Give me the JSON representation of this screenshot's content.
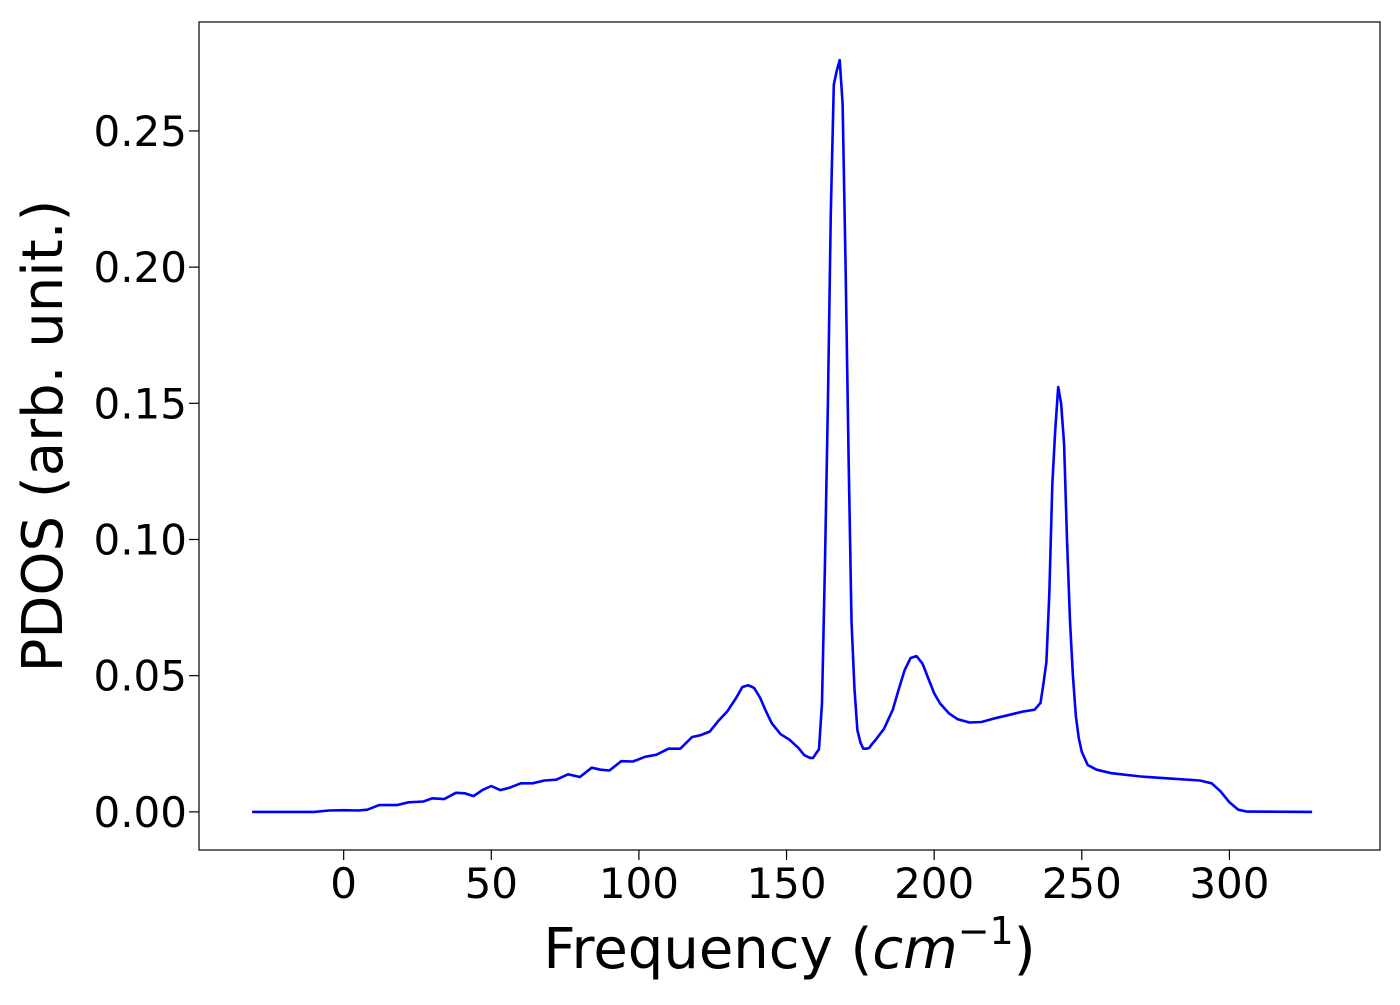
{
  "chart_data": {
    "type": "line",
    "xlabel": "Frequency (cm⁻¹)",
    "xlabel_parts": {
      "prefix": "Frequency (",
      "var": "cm",
      "exp": "−1",
      "suffix": ")"
    },
    "ylabel": "PDOS (arb. unit.)",
    "xlim": [
      -49,
      351
    ],
    "ylim": [
      -0.014,
      0.29
    ],
    "xticks": [
      0,
      50,
      100,
      150,
      200,
      250,
      300
    ],
    "xtick_labels": [
      "0",
      "50",
      "100",
      "150",
      "200",
      "250",
      "300"
    ],
    "yticks": [
      0.0,
      0.05,
      0.1,
      0.15,
      0.2,
      0.25
    ],
    "ytick_labels": [
      "0.00",
      "0.05",
      "0.10",
      "0.15",
      "0.20",
      "0.25"
    ],
    "grid": false,
    "legend": "none",
    "series": [
      {
        "color": "#0000ff",
        "x": [
          -31,
          -10,
          -5,
          0,
          5,
          8,
          12,
          18,
          22,
          27,
          30,
          34,
          38,
          41,
          44,
          47,
          50,
          53,
          56,
          60,
          64,
          68,
          72,
          76,
          80,
          84,
          87,
          90,
          94,
          98,
          102,
          106,
          110,
          114,
          118,
          121,
          124,
          127,
          130,
          133,
          135,
          137,
          139,
          141,
          143,
          145,
          148,
          151,
          154,
          156,
          158,
          159,
          160,
          161,
          162,
          163,
          164,
          165,
          166,
          167,
          168,
          169,
          170,
          171,
          172,
          173,
          174,
          175,
          176,
          177,
          178,
          179,
          180,
          183,
          186,
          188,
          190,
          192,
          194,
          196,
          198,
          200,
          202,
          205,
          208,
          212,
          216,
          220,
          225,
          230,
          234,
          236,
          237,
          238,
          239,
          240,
          241,
          242,
          243,
          244,
          245,
          246,
          247,
          248,
          249,
          250,
          252,
          255,
          260,
          270,
          280,
          290,
          294,
          297,
          300,
          303,
          306,
          328
        ],
        "y": [
          0.0,
          0.0,
          0.0005,
          0.0006,
          0.0005,
          0.0008,
          0.0025,
          0.0025,
          0.0035,
          0.0038,
          0.005,
          0.0047,
          0.007,
          0.0068,
          0.0058,
          0.008,
          0.0095,
          0.008,
          0.0088,
          0.0105,
          0.0105,
          0.0115,
          0.0118,
          0.0138,
          0.0128,
          0.0162,
          0.0155,
          0.0152,
          0.0186,
          0.0185,
          0.0202,
          0.021,
          0.0232,
          0.0232,
          0.0275,
          0.0282,
          0.0295,
          0.0335,
          0.037,
          0.042,
          0.0458,
          0.0465,
          0.0455,
          0.042,
          0.037,
          0.0325,
          0.0285,
          0.0265,
          0.0235,
          0.0208,
          0.0198,
          0.0198,
          0.0215,
          0.023,
          0.04,
          0.09,
          0.15,
          0.22,
          0.267,
          0.272,
          0.276,
          0.26,
          0.2,
          0.13,
          0.07,
          0.045,
          0.03,
          0.0255,
          0.0232,
          0.0232,
          0.0235,
          0.025,
          0.0262,
          0.0305,
          0.0375,
          0.045,
          0.052,
          0.0565,
          0.0572,
          0.0545,
          0.049,
          0.0435,
          0.0398,
          0.0362,
          0.034,
          0.0328,
          0.033,
          0.0342,
          0.0355,
          0.0368,
          0.0375,
          0.04,
          0.047,
          0.055,
          0.08,
          0.12,
          0.14,
          0.156,
          0.15,
          0.135,
          0.1,
          0.07,
          0.05,
          0.035,
          0.027,
          0.022,
          0.0172,
          0.0155,
          0.0142,
          0.013,
          0.0122,
          0.0115,
          0.0105,
          0.0075,
          0.0035,
          0.0008,
          0.0001,
          0.0
        ]
      }
    ]
  }
}
